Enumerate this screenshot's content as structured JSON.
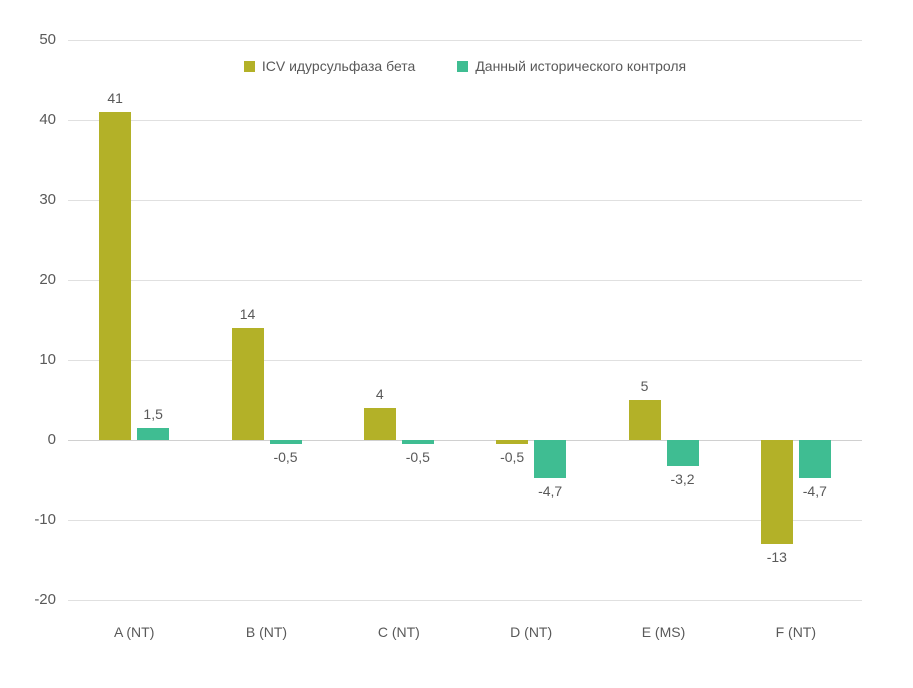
{
  "chart_data": {
    "type": "bar",
    "title": "",
    "xlabel": "",
    "ylabel": "",
    "categories": [
      "A (NT)",
      "B (NT)",
      "C (NT)",
      "D (NT)",
      "E (MS)",
      "F (NT)"
    ],
    "series": [
      {
        "name": "ICV идурсульфаза бета",
        "color": "#b3b128",
        "values": [
          41,
          14,
          4,
          -0.5,
          5,
          -13
        ],
        "labels": [
          "41",
          "14",
          "4",
          "-0,5",
          "5",
          "-13"
        ]
      },
      {
        "name": "Данный исторического контроля",
        "color": "#3fbd92",
        "values": [
          1.5,
          -0.5,
          -0.5,
          -4.7,
          -3.2,
          -4.7
        ],
        "labels": [
          "1,5",
          "-0,5",
          "-0,5",
          "-4,7",
          "-3,2",
          "-4,7"
        ]
      }
    ],
    "ylim": [
      -20,
      50
    ],
    "yticks": [
      50,
      40,
      30,
      20,
      10,
      0,
      -10,
      -20
    ],
    "grid": true,
    "legend_position": "top-center",
    "colors": {
      "text": "#595959",
      "gridline": "#e0e0e0",
      "zero_line": "#d0d0d0",
      "background": "#ffffff"
    }
  }
}
